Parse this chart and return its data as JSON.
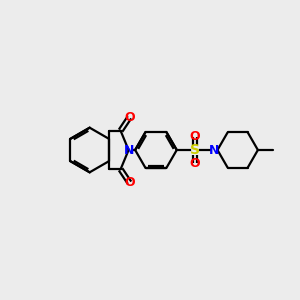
{
  "bg_color": "#ececec",
  "bond_color": "#000000",
  "N_color": "#0000ff",
  "O_color": "#ff0000",
  "S_color": "#cccc00",
  "line_width": 1.6,
  "font_size": 9,
  "figsize": [
    3.0,
    3.0
  ],
  "dpi": 100,
  "xlim": [
    0,
    10
  ],
  "ylim": [
    0,
    10
  ]
}
